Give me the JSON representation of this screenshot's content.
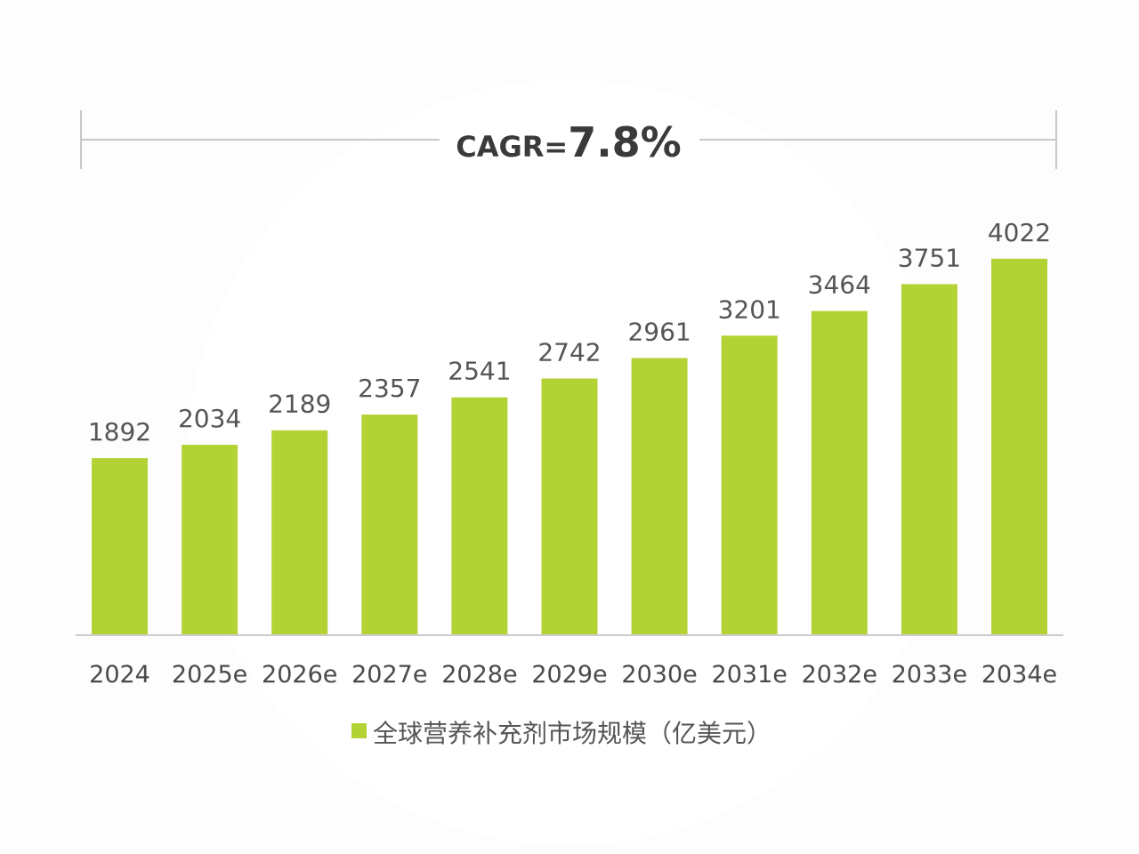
{
  "cagr": {
    "label": "CAGR=",
    "value": "7.8%"
  },
  "colors": {
    "bar": "#b3d335",
    "axis": "#cccccc",
    "bracket": "#c8c8c8"
  },
  "chart_data": {
    "type": "bar",
    "categories": [
      "2024",
      "2025e",
      "2026e",
      "2027e",
      "2028e",
      "2029e",
      "2030e",
      "2031e",
      "2032e",
      "2033e",
      "2034e"
    ],
    "series": [
      {
        "name": "全球营养补充剂市场规模（亿美元）",
        "values": [
          1892,
          2034,
          2189,
          2357,
          2541,
          2742,
          2961,
          3201,
          3464,
          3751,
          4022
        ]
      }
    ],
    "data_labels": [
      "1892",
      "2034",
      "2189",
      "2357",
      "2541",
      "2742",
      "2961",
      "3201",
      "3464",
      "3751",
      "4022"
    ],
    "ylim": [
      0,
      4300
    ],
    "grid": false,
    "legend_position": "bottom"
  }
}
